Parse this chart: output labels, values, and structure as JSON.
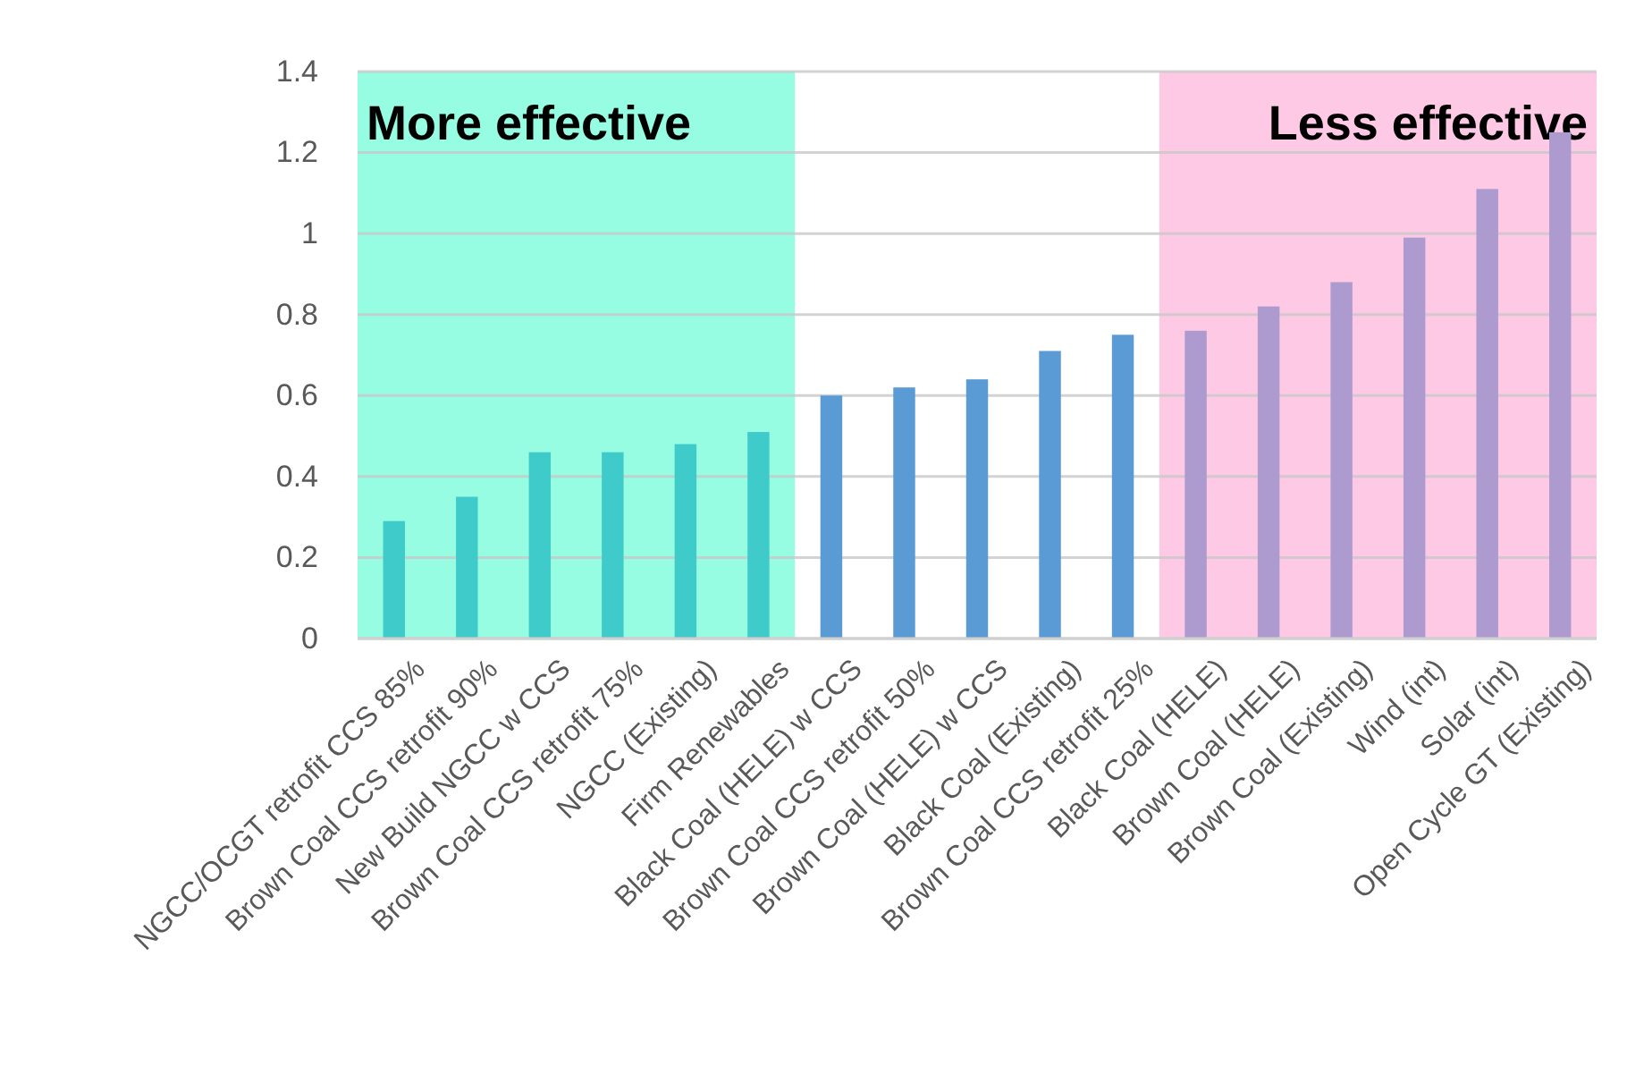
{
  "chart_data": {
    "type": "bar",
    "categories": [
      "NGCC/OCGT retrofit CCS 85%",
      "Brown Coal CCS retrofit 90%",
      "New Build NGCC w CCS",
      "Brown Coal CCS retrofit 75%",
      "NGCC (Existing)",
      "Firm Renewables",
      "Black Coal (HELE) w CCS",
      "Brown Coal CCS retrofit 50%",
      "Brown Coal (HELE) w CCS",
      "Black Coal (Existing)",
      "Brown Coal CCS retrofit 25%",
      "Black Coal (HELE)",
      "Brown Coal (HELE)",
      "Brown Coal (Existing)",
      "Wind (int)",
      "Solar (int)",
      "Open Cycle GT (Existing)"
    ],
    "values": [
      0.29,
      0.35,
      0.46,
      0.46,
      0.48,
      0.51,
      0.6,
      0.62,
      0.64,
      0.71,
      0.75,
      0.76,
      0.82,
      0.88,
      0.99,
      1.11,
      1.25
    ],
    "colors": [
      "#40cbcb",
      "#40cbcb",
      "#40cbcb",
      "#40cbcb",
      "#40cbcb",
      "#40cbcb",
      "#5b9bd5",
      "#5b9bd5",
      "#5b9bd5",
      "#5b9bd5",
      "#5b9bd5",
      "#ad9bd0",
      "#ad9bd0",
      "#ad9bd0",
      "#ad9bd0",
      "#ad9bd0",
      "#ad9bd0"
    ],
    "ylim": [
      0,
      1.4
    ],
    "yticks": [
      0,
      0.2,
      0.4,
      0.6,
      0.8,
      1,
      1.2,
      1.4
    ],
    "grid": "y",
    "annotations": [
      "More effective",
      "Less effective"
    ]
  }
}
